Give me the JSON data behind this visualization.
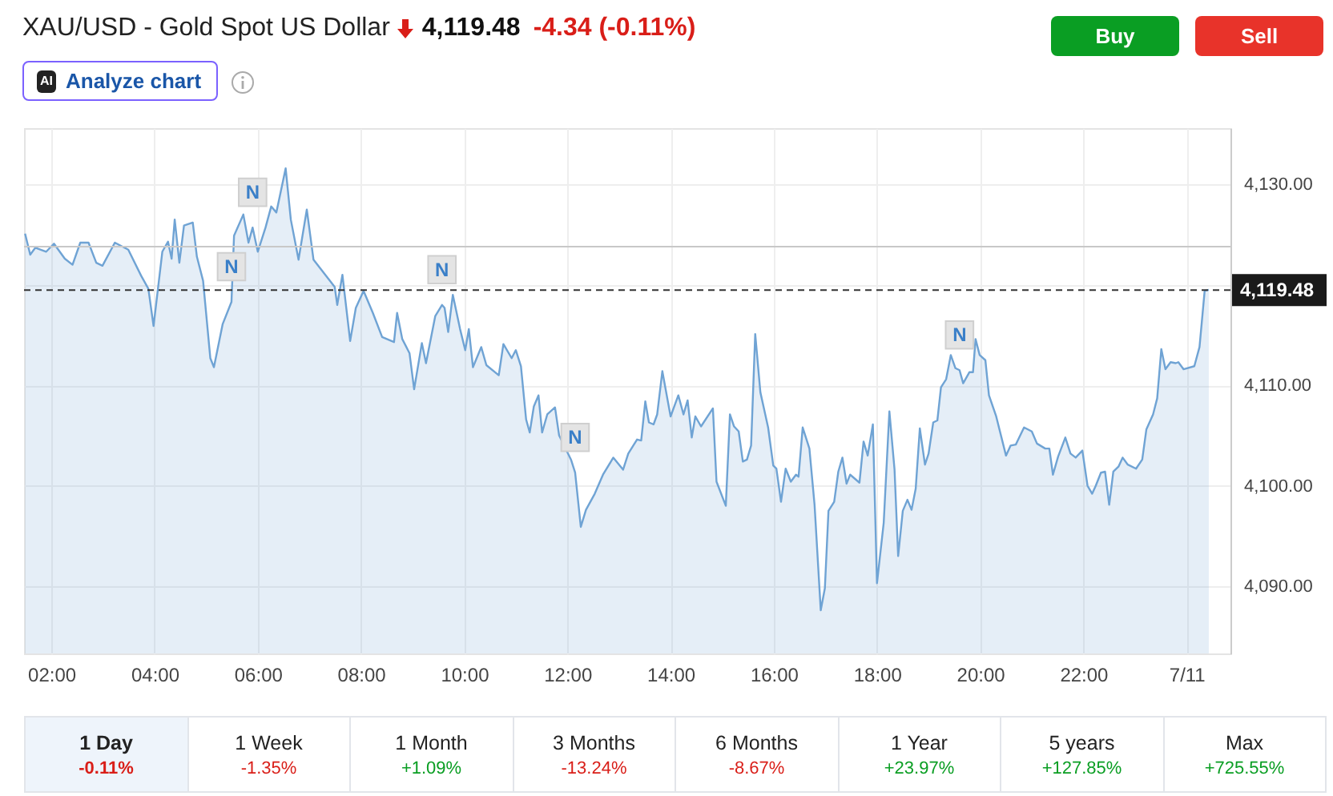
{
  "chart_data": {
    "type": "area",
    "title": "XAU/USD - Gold Spot US Dollar",
    "subtitle": "4,119.48",
    "annotations": [
      "-4.34 (-0.11%)",
      "AI",
      "Analyze chart",
      "Buy",
      "Sell",
      "1 Day",
      "-0.11%",
      "1 Week",
      "-1.35%",
      "1 Month",
      "+1.09%",
      "3 Months",
      "-13.24%",
      "6 Months",
      "-8.67%",
      "1 Year",
      "+23.97%",
      "5 years",
      "+127.85%",
      "Max",
      "+725.55%",
      {
        "text": "N",
        "x": 5.9,
        "y": 4125.7
      },
      {
        "text": "N",
        "x": 5.49,
        "y": 4118.3
      },
      {
        "text": "N",
        "x": 9.57,
        "y": 4118.0
      },
      {
        "text": "N",
        "x": 12.15,
        "y": 4101.3
      },
      {
        "text": "N",
        "x": 19.6,
        "y": 4111.5
      }
    ],
    "x": [
      1.49,
      1.59,
      1.69,
      1.9,
      2.05,
      2.26,
      2.41,
      2.56,
      2.72,
      2.87,
      2.99,
      3.23,
      3.49,
      3.74,
      3.88,
      3.98,
      4.15,
      4.26,
      4.33,
      4.39,
      4.48,
      4.57,
      4.74,
      4.82,
      4.94,
      5.08,
      5.15,
      5.32,
      5.49,
      5.54,
      5.72,
      5.82,
      5.9,
      6.0,
      6.15,
      6.26,
      6.36,
      6.54,
      6.64,
      6.79,
      6.95,
      7.08,
      7.49,
      7.54,
      7.64,
      7.79,
      7.9,
      8.05,
      8.23,
      8.41,
      8.64,
      8.7,
      8.8,
      8.94,
      9.03,
      9.18,
      9.26,
      9.44,
      9.57,
      9.62,
      9.69,
      9.78,
      9.92,
      10.02,
      10.09,
      10.17,
      10.33,
      10.43,
      10.67,
      10.76,
      10.92,
      11.0,
      11.1,
      11.2,
      11.27,
      11.35,
      11.44,
      11.51,
      11.61,
      11.76,
      11.84,
      12.07,
      12.15,
      12.26,
      12.36,
      12.53,
      12.69,
      12.89,
      13.08,
      13.18,
      13.35,
      13.43,
      13.51,
      13.58,
      13.67,
      13.74,
      13.84,
      14.0,
      14.15,
      14.25,
      14.33,
      14.41,
      14.48,
      14.59,
      14.82,
      14.89,
      15.07,
      15.15,
      15.23,
      15.32,
      15.4,
      15.48,
      15.56,
      15.64,
      15.74,
      15.89,
      15.99,
      16.05,
      16.14,
      16.23,
      16.33,
      16.43,
      16.48,
      16.56,
      16.69,
      16.79,
      16.91,
      16.99,
      17.06,
      17.17,
      17.25,
      17.33,
      17.41,
      17.48,
      17.66,
      17.74,
      17.82,
      17.92,
      18.0,
      18.13,
      18.24,
      18.34,
      18.41,
      18.5,
      18.59,
      18.67,
      18.75,
      18.83,
      18.93,
      19.0,
      19.09,
      19.17,
      19.24,
      19.34,
      19.43,
      19.52,
      19.6,
      19.67,
      19.79,
      19.86,
      19.91,
      19.99,
      20.1,
      20.17,
      20.31,
      20.5,
      20.59,
      20.69,
      20.85,
      21.0,
      21.1,
      21.26,
      21.34,
      21.41,
      21.51,
      21.65,
      21.75,
      21.85,
      21.98,
      22.08,
      22.17,
      22.24,
      22.34,
      22.42,
      22.5,
      22.58,
      22.68,
      22.76,
      22.86,
      23.02,
      23.14,
      23.22,
      23.35,
      23.43,
      23.51,
      23.59,
      23.69,
      23.79,
      23.84,
      23.94,
      24.15,
      24.25,
      24.35,
      24.43
    ],
    "values": [
      4125.1,
      4123.0,
      4123.7,
      4123.3,
      4124.1,
      4122.6,
      4122.0,
      4124.2,
      4124.2,
      4122.2,
      4121.9,
      4124.2,
      4123.5,
      4120.9,
      4119.6,
      4115.9,
      4123.3,
      4124.3,
      4122.6,
      4126.5,
      4122.2,
      4125.9,
      4126.2,
      4122.8,
      4120.4,
      4112.7,
      4111.8,
      4116.1,
      4118.3,
      4124.9,
      4127.0,
      4124.2,
      4125.7,
      4123.3,
      4125.7,
      4127.8,
      4127.2,
      4131.6,
      4126.5,
      4122.5,
      4127.5,
      4122.5,
      4119.8,
      4118.0,
      4121.0,
      4114.4,
      4117.7,
      4119.4,
      4117.2,
      4114.8,
      4114.3,
      4117.2,
      4114.6,
      4113.2,
      4109.6,
      4114.2,
      4112.2,
      4116.9,
      4118.0,
      4117.7,
      4115.3,
      4119.0,
      4115.6,
      4113.5,
      4115.6,
      4111.8,
      4113.8,
      4112.0,
      4111.0,
      4114.1,
      4112.7,
      4113.5,
      4111.9,
      4106.6,
      4105.3,
      4107.9,
      4109.0,
      4105.3,
      4107.1,
      4107.8,
      4105.0,
      4102.6,
      4101.3,
      4095.9,
      4097.6,
      4099.2,
      4101.1,
      4102.8,
      4101.6,
      4103.2,
      4104.6,
      4104.5,
      4108.4,
      4106.3,
      4106.1,
      4107.1,
      4111.4,
      4106.9,
      4109.0,
      4107.1,
      4108.5,
      4104.8,
      4106.9,
      4105.9,
      4107.7,
      4100.4,
      4098.0,
      4107.1,
      4105.9,
      4105.4,
      4102.4,
      4102.6,
      4104.0,
      4115.1,
      4109.3,
      4105.8,
      4102.0,
      4101.7,
      4098.4,
      4101.7,
      4100.4,
      4101.1,
      4100.9,
      4105.8,
      4103.7,
      4098.1,
      4087.6,
      4089.8,
      4097.5,
      4098.4,
      4101.4,
      4102.8,
      4100.2,
      4101.1,
      4100.3,
      4104.4,
      4103.0,
      4106.1,
      4090.3,
      4096.3,
      4107.4,
      4101.6,
      4093.0,
      4097.5,
      4098.6,
      4097.6,
      4099.7,
      4105.7,
      4102.1,
      4103.2,
      4106.3,
      4106.5,
      4109.8,
      4110.6,
      4113.0,
      4111.7,
      4111.5,
      4110.2,
      4111.3,
      4111.3,
      4114.6,
      4113.0,
      4112.5,
      4109.0,
      4106.9,
      4103.0,
      4104.0,
      4104.1,
      4105.8,
      4105.4,
      4104.2,
      4103.7,
      4103.7,
      4101.1,
      4102.9,
      4104.8,
      4103.2,
      4102.8,
      4103.5,
      4100.0,
      4099.2,
      4100.0,
      4101.3,
      4101.4,
      4098.1,
      4101.4,
      4101.9,
      4102.8,
      4102.1,
      4101.7,
      4102.6,
      4105.6,
      4107.1,
      4108.7,
      4113.6,
      4111.6,
      4112.3,
      4112.2,
      4112.3,
      4111.6,
      4111.9,
      4113.8,
      4119.4,
      4119.5
    ],
    "color": "#6fa3d4",
    "xlim": [
      1.47,
      24.85
    ],
    "xticks": [
      {
        "value": 2,
        "label": "02:00"
      },
      {
        "value": 4,
        "label": "04:00"
      },
      {
        "value": 6,
        "label": "06:00"
      },
      {
        "value": 8,
        "label": "08:00"
      },
      {
        "value": 10,
        "label": "10:00"
      },
      {
        "value": 12,
        "label": "12:00"
      },
      {
        "value": 14,
        "label": "14:00"
      },
      {
        "value": 16,
        "label": "16:00"
      },
      {
        "value": 18,
        "label": "18:00"
      },
      {
        "value": 20,
        "label": "20:00"
      },
      {
        "value": 22,
        "label": "22:00"
      },
      {
        "value": 24,
        "label": "7/11"
      }
    ],
    "ylim": [
      4083.3,
      4135.6
    ],
    "yticks": [
      {
        "value": 4090,
        "label": "4,090.00"
      },
      {
        "value": 4100,
        "label": "4,100.00"
      },
      {
        "value": 4110,
        "label": "4,110.00"
      },
      {
        "value": 4120,
        "label": null
      },
      {
        "value": 4130,
        "label": "4,130.00"
      }
    ],
    "grid": true,
    "ref_lines": [
      {
        "axis": "y",
        "value": 4123.8,
        "color": "#c8c8c8"
      },
      {
        "axis": "y",
        "value": 4119.48,
        "label": "4,119.48",
        "line_style": "dashed",
        "color": "#333333"
      }
    ]
  }
}
